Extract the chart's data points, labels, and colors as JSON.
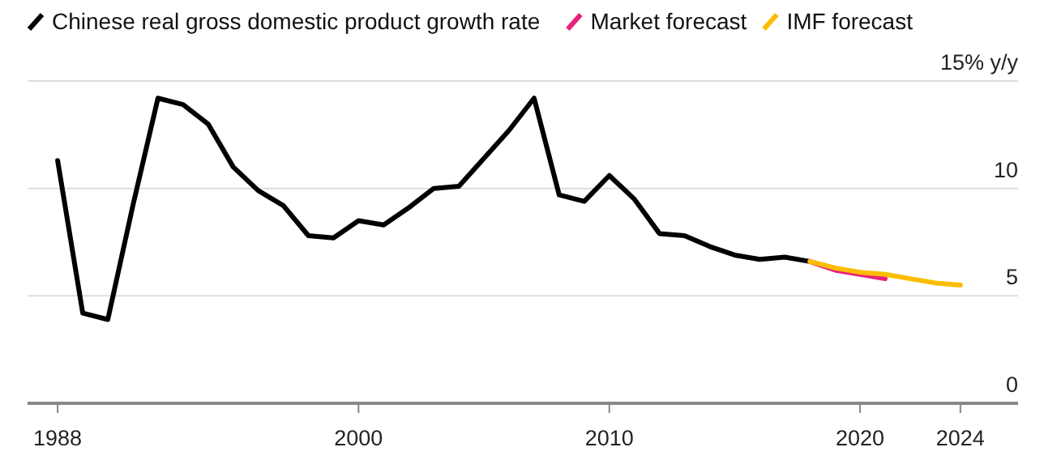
{
  "chart_data": {
    "type": "line",
    "x": [
      1988,
      1989,
      1990,
      1991,
      1992,
      1993,
      1994,
      1995,
      1996,
      1997,
      1998,
      1999,
      2000,
      2001,
      2002,
      2003,
      2004,
      2005,
      2006,
      2007,
      2008,
      2009,
      2010,
      2011,
      2012,
      2013,
      2014,
      2015,
      2016,
      2017,
      2018
    ],
    "series": [
      {
        "name": "Chinese real gross domestic product growth rate",
        "color": "#000000",
        "values": [
          11.3,
          4.2,
          3.9,
          9.2,
          14.2,
          13.9,
          13.0,
          11.0,
          9.9,
          9.2,
          7.8,
          7.7,
          8.5,
          8.3,
          9.1,
          10.0,
          10.1,
          11.4,
          12.7,
          14.2,
          9.7,
          9.4,
          10.6,
          9.5,
          7.9,
          7.8,
          7.3,
          6.9,
          6.7,
          6.8,
          6.6
        ]
      },
      {
        "name": "Market forecast",
        "color": "#e8207a",
        "x": [
          2018,
          2019,
          2020,
          2021
        ],
        "values": [
          6.6,
          6.2,
          6.0,
          5.8
        ]
      },
      {
        "name": "IMF forecast",
        "color": "#fbbc05",
        "x": [
          2018,
          2019,
          2020,
          2021,
          2022,
          2023,
          2024
        ],
        "values": [
          6.6,
          6.3,
          6.1,
          6.0,
          5.8,
          5.6,
          5.5
        ]
      }
    ],
    "xlim": [
      1986.8,
      2026.3
    ],
    "xticks": [
      1988,
      2000,
      2010,
      2020,
      2024
    ],
    "ylim": [
      0,
      15
    ],
    "yticks": [
      0,
      5,
      10,
      {
        "value": 15,
        "label": "15% y/y"
      }
    ],
    "grid": "y",
    "legend": "top",
    "marker": "none",
    "line_style": "solid"
  }
}
